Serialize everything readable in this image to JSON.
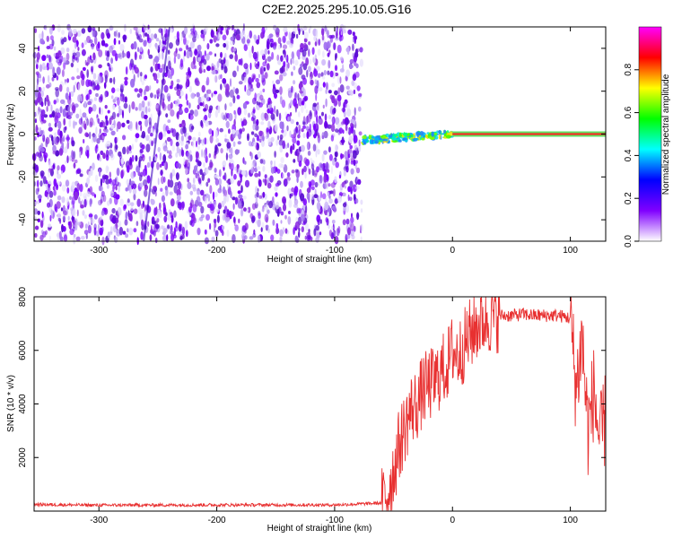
{
  "page": {
    "title": "C2E2.2025.295.10.05.G16"
  },
  "chart_data": [
    {
      "type": "heatmap",
      "title": "C2E2.2025.295.10.05.G16",
      "xlabel": "Height of straight line (km)",
      "ylabel": "Frequency (Hz)",
      "xlim": [
        -355,
        130
      ],
      "ylim": [
        -50,
        50
      ],
      "xticks": [
        -300,
        -200,
        -100,
        0,
        100
      ],
      "yticks": [
        -40,
        -20,
        0,
        20,
        40
      ],
      "grid": false,
      "noise_region_x": [
        -355,
        -77
      ],
      "carrier_line_x": [
        0,
        130
      ],
      "carrier_frequency": 0,
      "colorbar": {
        "label": "Normalized spectral amplitude",
        "range": [
          0,
          1
        ],
        "ticks": [
          0.0,
          0.2,
          0.4,
          0.6,
          0.8
        ],
        "colors": [
          "#ffffff",
          "#8000ff",
          "#0000ff",
          "#00ffff",
          "#00ff00",
          "#ffff00",
          "#ff0000",
          "#ff00ff"
        ]
      }
    },
    {
      "type": "line",
      "xlabel": "Height of straight line (km)",
      "ylabel": "SNR (10 * v/v)",
      "xlim": [
        -355,
        130
      ],
      "ylim": [
        0,
        8000
      ],
      "xticks": [
        -300,
        -200,
        -100,
        0,
        100
      ],
      "yticks": [
        2000,
        4000,
        6000,
        8000
      ],
      "grid": false,
      "color": "#e83030",
      "series": [
        {
          "x": [
            -355,
            -300,
            -200,
            -100,
            -60,
            -55,
            -50,
            -45,
            -40,
            -35,
            -30,
            -25,
            -20,
            -15,
            -10,
            -5,
            0,
            5,
            10,
            15,
            20,
            25,
            30,
            40,
            50,
            60,
            70,
            80,
            90,
            100,
            105,
            110,
            115,
            120,
            125,
            130
          ],
          "values": [
            250,
            220,
            230,
            230,
            300,
            700,
            1500,
            2500,
            3200,
            3800,
            4000,
            4500,
            4700,
            4800,
            5200,
            5400,
            6000,
            5800,
            6200,
            6600,
            6900,
            7100,
            7200,
            7300,
            7300,
            7350,
            7300,
            7300,
            7300,
            7200,
            4500,
            6500,
            3000,
            4500,
            2500,
            3500
          ]
        }
      ]
    }
  ]
}
